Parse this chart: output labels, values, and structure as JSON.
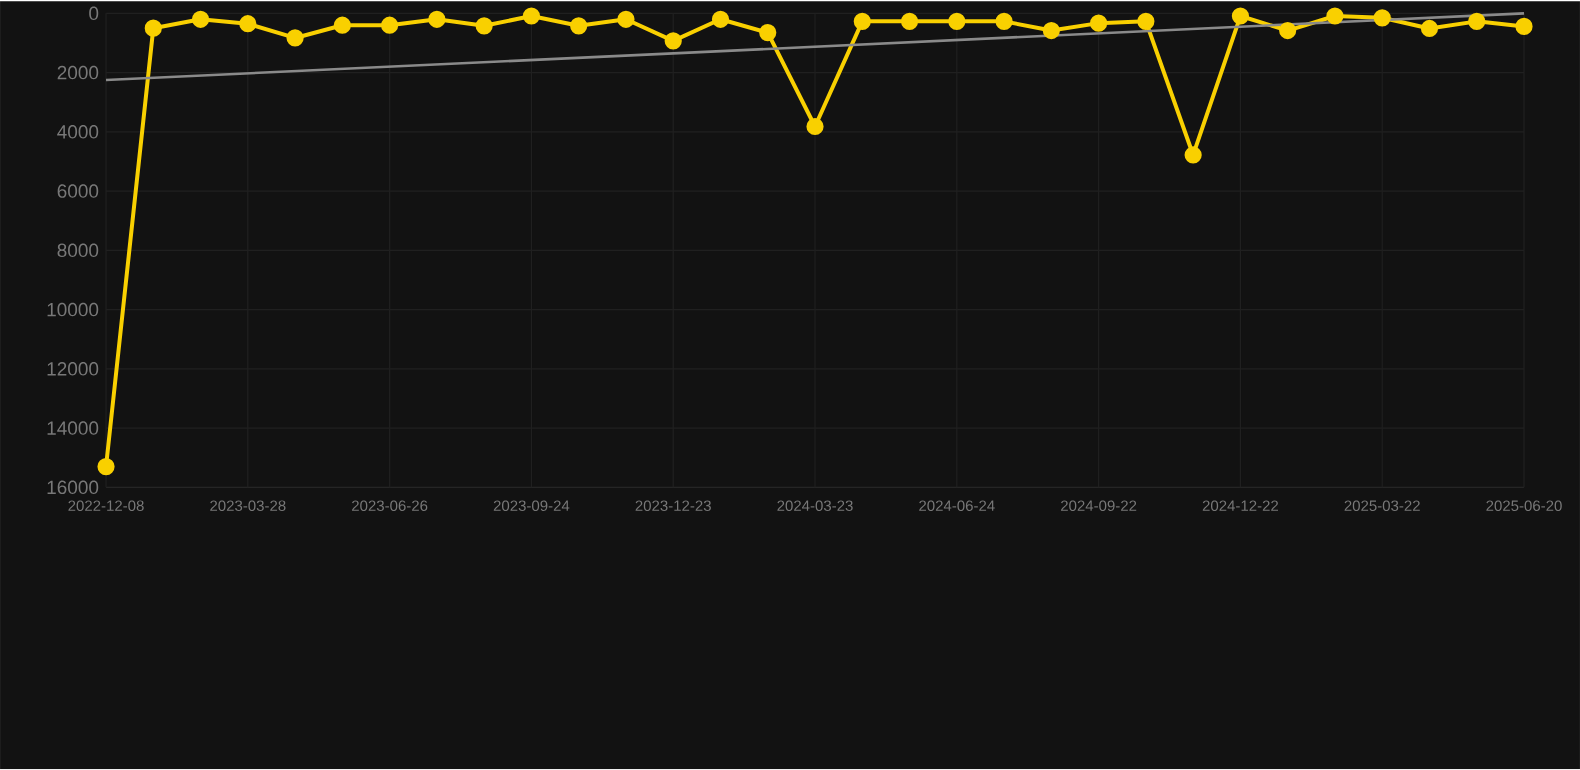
{
  "chart_data": {
    "type": "line",
    "categories": [
      "2022-12-08",
      null,
      null,
      "2023-03-28",
      null,
      null,
      "2023-06-26",
      null,
      null,
      "2023-09-24",
      null,
      null,
      "2023-12-23",
      null,
      null,
      "2024-03-23",
      null,
      null,
      "2024-06-24",
      null,
      null,
      "2024-09-22",
      null,
      null,
      "2024-12-22",
      null,
      null,
      "2025-03-22",
      null,
      null,
      "2025-06-20"
    ],
    "series": [
      {
        "color": "#f9d000",
        "values": [
          15300,
          500,
          200,
          350,
          830,
          400,
          400,
          200,
          420,
          90,
          420,
          200,
          930,
          200,
          650,
          3820,
          270,
          270,
          270,
          270,
          580,
          330,
          270,
          4780,
          90,
          580,
          90,
          150,
          510,
          270,
          440
        ]
      },
      {
        "type": "line",
        "color": "#8a8a8a",
        "marker": "none",
        "values": [
          2250,
          null,
          null,
          null,
          null,
          null,
          null,
          null,
          null,
          null,
          null,
          null,
          null,
          null,
          null,
          null,
          null,
          null,
          null,
          null,
          null,
          null,
          null,
          null,
          null,
          null,
          null,
          null,
          null,
          null,
          0
        ]
      }
    ],
    "ylim": [
      16000,
      0
    ],
    "yticks": [
      0,
      2000,
      4000,
      6000,
      8000,
      10000,
      12000,
      14000,
      16000
    ],
    "grid": true,
    "marker": "circle"
  }
}
